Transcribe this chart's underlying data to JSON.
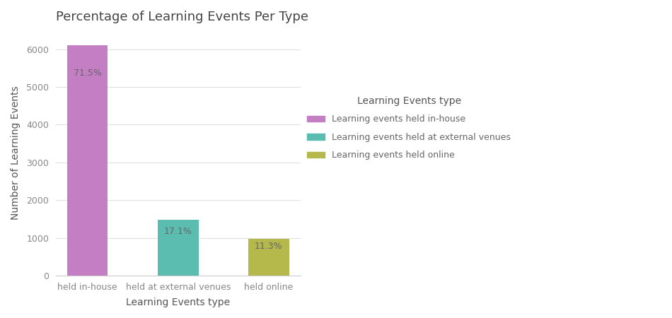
{
  "title": "Percentage of Learning Events Per Type",
  "xlabel": "Learning Events type",
  "ylabel": "Number of Learning Events",
  "categories": [
    "held in-house",
    "held at external venues",
    "held online"
  ],
  "values": [
    6100,
    1470,
    975
  ],
  "percentages": [
    "71.5%",
    "17.1%",
    "11.3%"
  ],
  "bar_colors": [
    "#c47ec4",
    "#5bbcb0",
    "#b5b84a"
  ],
  "legend_title": "Learning Events type",
  "legend_labels": [
    "Learning events held in-house",
    "Learning events held at external venues",
    "Learning events held online"
  ],
  "ylim": [
    0,
    6500
  ],
  "yticks": [
    0,
    1000,
    2000,
    3000,
    4000,
    5000,
    6000
  ],
  "background_color": "#ffffff",
  "grid_color": "#e0e0e0",
  "title_fontsize": 13,
  "axis_label_fontsize": 10,
  "tick_fontsize": 9,
  "annotation_fontsize": 9,
  "legend_fontsize": 9,
  "bar_width": 0.45
}
